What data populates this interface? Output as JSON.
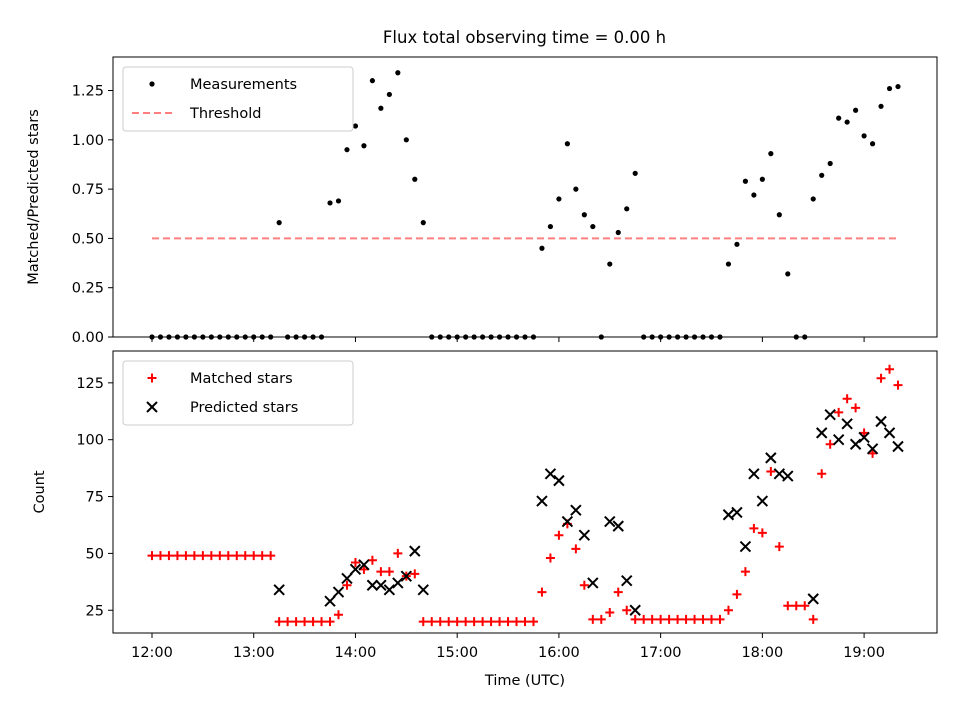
{
  "title": "Flux total observing time = 0.00 h",
  "chart_data": [
    {
      "type": "scatter",
      "ylabel": "Matched/Predicted stars",
      "ylim": [
        0,
        1.42
      ],
      "yticks": [
        "0.00",
        "0.25",
        "0.50",
        "0.75",
        "1.00",
        "1.25"
      ],
      "xlim": [
        "11:37",
        "19:43"
      ],
      "xticks": [
        "12:00",
        "13:00",
        "14:00",
        "15:00",
        "16:00",
        "17:00",
        "18:00",
        "19:00"
      ],
      "legend": {
        "position": "upper-left",
        "entries": [
          "Measurements",
          "Threshold"
        ]
      },
      "threshold": {
        "name": "Threshold",
        "value": 0.5,
        "x_start": "12:00",
        "x_end": "19:20",
        "color": "#ff7f7f",
        "style": "dashed"
      },
      "series": [
        {
          "name": "Measurements",
          "marker": "dot",
          "color": "#000000",
          "points": [
            [
              "12:00",
              0
            ],
            [
              "12:05",
              0
            ],
            [
              "12:10",
              0
            ],
            [
              "12:15",
              0
            ],
            [
              "12:20",
              0
            ],
            [
              "12:25",
              0
            ],
            [
              "12:30",
              0
            ],
            [
              "12:35",
              0
            ],
            [
              "12:40",
              0
            ],
            [
              "12:45",
              0
            ],
            [
              "12:50",
              0
            ],
            [
              "12:55",
              0
            ],
            [
              "13:00",
              0
            ],
            [
              "13:05",
              0
            ],
            [
              "13:10",
              0
            ],
            [
              "13:15",
              0.58
            ],
            [
              "13:20",
              0
            ],
            [
              "13:25",
              0
            ],
            [
              "13:30",
              0
            ],
            [
              "13:35",
              0
            ],
            [
              "13:40",
              0
            ],
            [
              "13:45",
              0.68
            ],
            [
              "13:50",
              0.69
            ],
            [
              "13:55",
              0.95
            ],
            [
              "14:00",
              1.07
            ],
            [
              "14:05",
              0.97
            ],
            [
              "14:10",
              1.3
            ],
            [
              "14:15",
              1.16
            ],
            [
              "14:20",
              1.23
            ],
            [
              "14:25",
              1.34
            ],
            [
              "14:30",
              1.0
            ],
            [
              "14:35",
              0.8
            ],
            [
              "14:40",
              0.58
            ],
            [
              "14:45",
              0
            ],
            [
              "14:50",
              0
            ],
            [
              "14:55",
              0
            ],
            [
              "15:00",
              0
            ],
            [
              "15:05",
              0
            ],
            [
              "15:10",
              0
            ],
            [
              "15:15",
              0
            ],
            [
              "15:20",
              0
            ],
            [
              "15:25",
              0
            ],
            [
              "15:30",
              0
            ],
            [
              "15:35",
              0
            ],
            [
              "15:40",
              0
            ],
            [
              "15:45",
              0
            ],
            [
              "15:50",
              0.45
            ],
            [
              "15:55",
              0.56
            ],
            [
              "16:00",
              0.7
            ],
            [
              "16:05",
              0.98
            ],
            [
              "16:10",
              0.75
            ],
            [
              "16:15",
              0.62
            ],
            [
              "16:20",
              0.56
            ],
            [
              "16:25",
              0
            ],
            [
              "16:30",
              0.37
            ],
            [
              "16:35",
              0.53
            ],
            [
              "16:40",
              0.65
            ],
            [
              "16:45",
              0.83
            ],
            [
              "16:50",
              0
            ],
            [
              "16:55",
              0
            ],
            [
              "17:00",
              0
            ],
            [
              "17:05",
              0
            ],
            [
              "17:10",
              0
            ],
            [
              "17:15",
              0
            ],
            [
              "17:20",
              0
            ],
            [
              "17:25",
              0
            ],
            [
              "17:30",
              0
            ],
            [
              "17:35",
              0
            ],
            [
              "17:40",
              0.37
            ],
            [
              "17:45",
              0.47
            ],
            [
              "17:50",
              0.79
            ],
            [
              "17:55",
              0.72
            ],
            [
              "18:00",
              0.8
            ],
            [
              "18:05",
              0.93
            ],
            [
              "18:10",
              0.62
            ],
            [
              "18:15",
              0.32
            ],
            [
              "18:20",
              0
            ],
            [
              "18:25",
              0
            ],
            [
              "18:30",
              0.7
            ],
            [
              "18:35",
              0.82
            ],
            [
              "18:40",
              0.88
            ],
            [
              "18:45",
              1.11
            ],
            [
              "18:50",
              1.09
            ],
            [
              "18:55",
              1.15
            ],
            [
              "19:00",
              1.02
            ],
            [
              "19:05",
              0.98
            ],
            [
              "19:10",
              1.17
            ],
            [
              "19:15",
              1.26
            ],
            [
              "19:20",
              1.27
            ]
          ]
        }
      ]
    },
    {
      "type": "scatter",
      "xlabel": "Time (UTC)",
      "ylabel": "Count",
      "ylim": [
        15,
        139
      ],
      "yticks": [
        "25",
        "50",
        "75",
        "100",
        "125"
      ],
      "xlim": [
        "11:37",
        "19:43"
      ],
      "xticks": [
        "12:00",
        "13:00",
        "14:00",
        "15:00",
        "16:00",
        "17:00",
        "18:00",
        "19:00"
      ],
      "legend": {
        "position": "upper-left",
        "entries": [
          "Matched stars",
          "Predicted stars"
        ]
      },
      "series": [
        {
          "name": "Matched stars",
          "marker": "plus",
          "color": "#ff0000",
          "points": [
            [
              "12:00",
              49
            ],
            [
              "12:05",
              49
            ],
            [
              "12:10",
              49
            ],
            [
              "12:15",
              49
            ],
            [
              "12:20",
              49
            ],
            [
              "12:25",
              49
            ],
            [
              "12:30",
              49
            ],
            [
              "12:35",
              49
            ],
            [
              "12:40",
              49
            ],
            [
              "12:45",
              49
            ],
            [
              "12:50",
              49
            ],
            [
              "12:55",
              49
            ],
            [
              "13:00",
              49
            ],
            [
              "13:05",
              49
            ],
            [
              "13:10",
              49
            ],
            [
              "13:15",
              20
            ],
            [
              "13:20",
              20
            ],
            [
              "13:25",
              20
            ],
            [
              "13:30",
              20
            ],
            [
              "13:35",
              20
            ],
            [
              "13:40",
              20
            ],
            [
              "13:45",
              20
            ],
            [
              "13:50",
              23
            ],
            [
              "13:55",
              36
            ],
            [
              "14:00",
              46
            ],
            [
              "14:05",
              43
            ],
            [
              "14:10",
              47
            ],
            [
              "14:15",
              42
            ],
            [
              "14:20",
              42
            ],
            [
              "14:25",
              50
            ],
            [
              "14:30",
              40
            ],
            [
              "14:35",
              41
            ],
            [
              "14:40",
              20
            ],
            [
              "14:45",
              20
            ],
            [
              "14:50",
              20
            ],
            [
              "14:55",
              20
            ],
            [
              "15:00",
              20
            ],
            [
              "15:05",
              20
            ],
            [
              "15:10",
              20
            ],
            [
              "15:15",
              20
            ],
            [
              "15:20",
              20
            ],
            [
              "15:25",
              20
            ],
            [
              "15:30",
              20
            ],
            [
              "15:35",
              20
            ],
            [
              "15:40",
              20
            ],
            [
              "15:45",
              20
            ],
            [
              "15:50",
              33
            ],
            [
              "15:55",
              48
            ],
            [
              "16:00",
              58
            ],
            [
              "16:05",
              63
            ],
            [
              "16:10",
              52
            ],
            [
              "16:15",
              36
            ],
            [
              "16:20",
              21
            ],
            [
              "16:25",
              21
            ],
            [
              "16:30",
              24
            ],
            [
              "16:35",
              33
            ],
            [
              "16:40",
              25
            ],
            [
              "16:45",
              21
            ],
            [
              "16:50",
              21
            ],
            [
              "16:55",
              21
            ],
            [
              "17:00",
              21
            ],
            [
              "17:05",
              21
            ],
            [
              "17:10",
              21
            ],
            [
              "17:15",
              21
            ],
            [
              "17:20",
              21
            ],
            [
              "17:25",
              21
            ],
            [
              "17:30",
              21
            ],
            [
              "17:35",
              21
            ],
            [
              "17:40",
              25
            ],
            [
              "17:45",
              32
            ],
            [
              "17:50",
              42
            ],
            [
              "17:55",
              61
            ],
            [
              "18:00",
              59
            ],
            [
              "18:05",
              86
            ],
            [
              "18:10",
              53
            ],
            [
              "18:15",
              27
            ],
            [
              "18:20",
              27
            ],
            [
              "18:25",
              27
            ],
            [
              "18:30",
              21
            ],
            [
              "18:35",
              85
            ],
            [
              "18:40",
              98
            ],
            [
              "18:45",
              112
            ],
            [
              "18:50",
              118
            ],
            [
              "18:55",
              114
            ],
            [
              "19:00",
              103
            ],
            [
              "19:05",
              94
            ],
            [
              "19:10",
              127
            ],
            [
              "19:15",
              131
            ],
            [
              "19:20",
              124
            ]
          ]
        },
        {
          "name": "Predicted stars",
          "marker": "x",
          "color": "#000000",
          "points": [
            [
              "13:15",
              34
            ],
            [
              "13:45",
              29
            ],
            [
              "13:50",
              33
            ],
            [
              "13:55",
              39
            ],
            [
              "14:00",
              43
            ],
            [
              "14:05",
              45
            ],
            [
              "14:10",
              36
            ],
            [
              "14:15",
              36
            ],
            [
              "14:20",
              34
            ],
            [
              "14:25",
              37
            ],
            [
              "14:30",
              40
            ],
            [
              "14:35",
              51
            ],
            [
              "14:40",
              34
            ],
            [
              "15:50",
              73
            ],
            [
              "15:55",
              85
            ],
            [
              "16:00",
              82
            ],
            [
              "16:05",
              64
            ],
            [
              "16:10",
              69
            ],
            [
              "16:15",
              58
            ],
            [
              "16:20",
              37
            ],
            [
              "16:30",
              64
            ],
            [
              "16:35",
              62
            ],
            [
              "16:40",
              38
            ],
            [
              "16:45",
              25
            ],
            [
              "17:40",
              67
            ],
            [
              "17:45",
              68
            ],
            [
              "17:50",
              53
            ],
            [
              "17:55",
              85
            ],
            [
              "18:00",
              73
            ],
            [
              "18:05",
              92
            ],
            [
              "18:10",
              85
            ],
            [
              "18:15",
              84
            ],
            [
              "18:30",
              30
            ],
            [
              "18:35",
              103
            ],
            [
              "18:40",
              111
            ],
            [
              "18:45",
              100
            ],
            [
              "18:50",
              107
            ],
            [
              "18:55",
              98
            ],
            [
              "19:00",
              101
            ],
            [
              "19:05",
              96
            ],
            [
              "19:10",
              108
            ],
            [
              "19:15",
              103
            ],
            [
              "19:20",
              97
            ]
          ]
        }
      ]
    }
  ]
}
